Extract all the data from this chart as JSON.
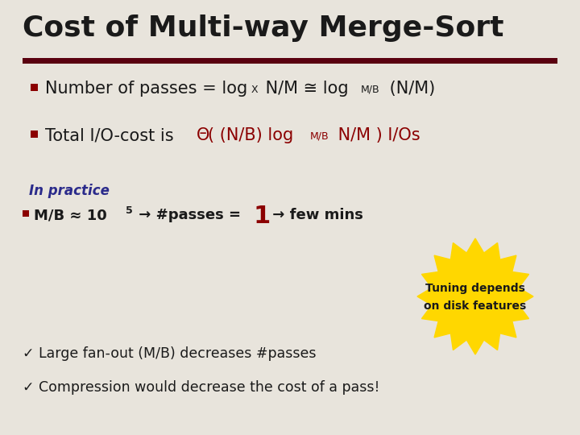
{
  "background_color": "#e8e4dc",
  "title": "Cost of Multi-way Merge-Sort",
  "title_color": "#1a1a1a",
  "title_fontsize": 26,
  "bar_color": "#5a0010",
  "text_color": "#1a1a1a",
  "dark_red": "#8b0000",
  "blue_practice": "#2b2b8b",
  "badge_color": "#ffd700",
  "badge_text_color": "#1a1a1a",
  "check1": "✓ Large fan-out (M/B) decreases #passes",
  "check2": "✓ Compression would decrease the cost of a pass!"
}
